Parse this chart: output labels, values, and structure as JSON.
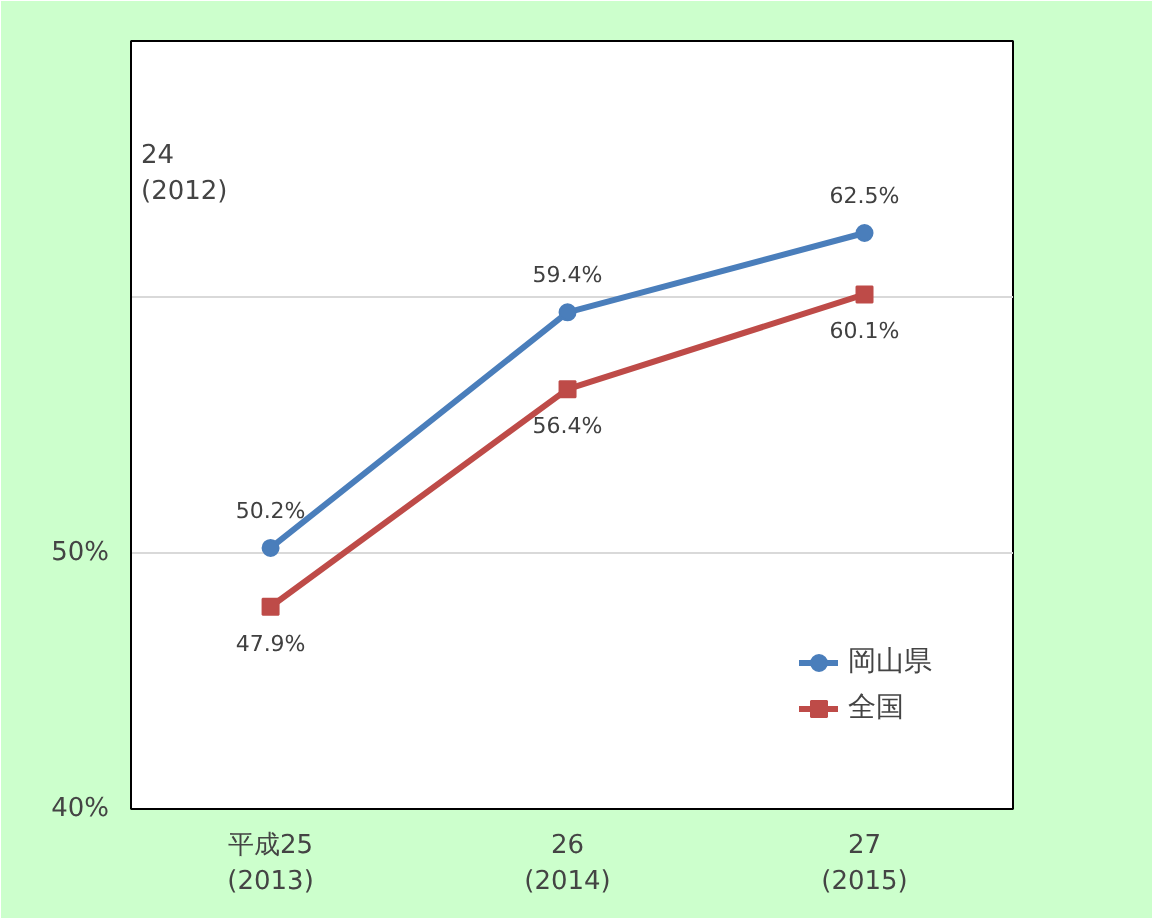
{
  "chart_data": {
    "type": "line",
    "categories": [
      "平成25\n(2013)",
      "26\n(2014)",
      "27\n(2015)"
    ],
    "series": [
      {
        "name": "岡山県",
        "color": "#4a7ebb",
        "marker": "circle",
        "values": [
          50.2,
          59.4,
          62.5
        ],
        "value_labels": [
          "50.2%",
          "59.4%",
          "62.5%"
        ]
      },
      {
        "name": "全国",
        "color": "#be4b48",
        "marker": "square",
        "values": [
          47.9,
          56.4,
          60.1
        ],
        "value_labels": [
          "47.9%",
          "56.4%",
          "60.1%"
        ]
      }
    ],
    "ylim": [
      40,
      70
    ],
    "yticks": [
      {
        "value": 40,
        "label": "40%"
      },
      {
        "value": 50,
        "label": "50%"
      },
      {
        "value": 60,
        "label": null
      },
      {
        "value": 70,
        "label": null
      }
    ],
    "grid": "y",
    "legend": "bottom right",
    "line_style": "solid",
    "annotations": [
      "24\n(2012)"
    ]
  }
}
